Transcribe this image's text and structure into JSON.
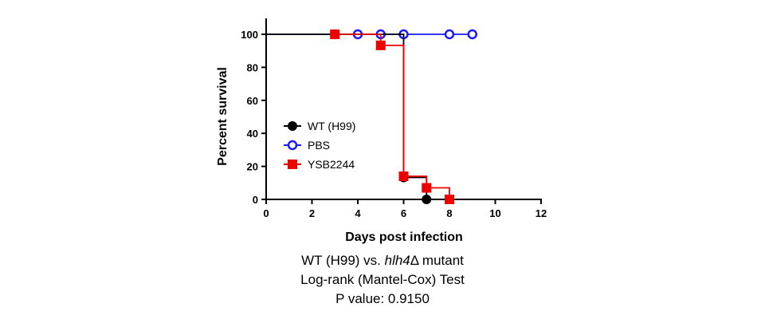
{
  "chart_data": {
    "type": "line",
    "subtype": "step (Kaplan-Meier survival)",
    "xlabel": "Days post infection",
    "ylabel": "Percent survival",
    "xlim": [
      0,
      12
    ],
    "ylim": [
      0,
      100
    ],
    "xticks": [
      "0",
      "2",
      "4",
      "6",
      "8",
      "10",
      "12"
    ],
    "yticks": [
      "0",
      "20",
      "40",
      "60",
      "80",
      "100"
    ],
    "grid": false,
    "legend_position": "center-left",
    "series": [
      {
        "name": "WT (H99)",
        "color": "#000000",
        "marker": "filled-circle",
        "steps": [
          [
            0,
            100
          ],
          [
            6,
            13.3
          ],
          [
            7,
            0
          ]
        ],
        "points": [
          [
            6,
            13.3
          ],
          [
            7,
            0
          ]
        ]
      },
      {
        "name": "PBS",
        "color": "#1a1aff",
        "marker": "open-circle",
        "steps": [
          [
            0,
            100
          ],
          [
            9,
            100
          ]
        ],
        "points": [
          [
            3,
            100
          ],
          [
            4,
            100
          ],
          [
            5,
            100
          ],
          [
            6,
            100
          ],
          [
            8,
            100
          ],
          [
            9,
            100
          ]
        ]
      },
      {
        "name": "YSB2244",
        "color": "#ee0000",
        "marker": "filled-square",
        "steps": [
          [
            3,
            100
          ],
          [
            5,
            93.3
          ],
          [
            6,
            14
          ],
          [
            7,
            7
          ],
          [
            8,
            0
          ]
        ],
        "points": [
          [
            3,
            100
          ],
          [
            5,
            93.3
          ],
          [
            6,
            14
          ],
          [
            7,
            7
          ],
          [
            8,
            0
          ]
        ]
      }
    ]
  },
  "caption": {
    "line1_prefix": "WT (H99) vs. ",
    "line1_italic": "hlh4",
    "line1_suffix": "Δ mutant",
    "line2": "Log-rank (Mantel-Cox) Test",
    "line3": "P value: 0.9150"
  }
}
